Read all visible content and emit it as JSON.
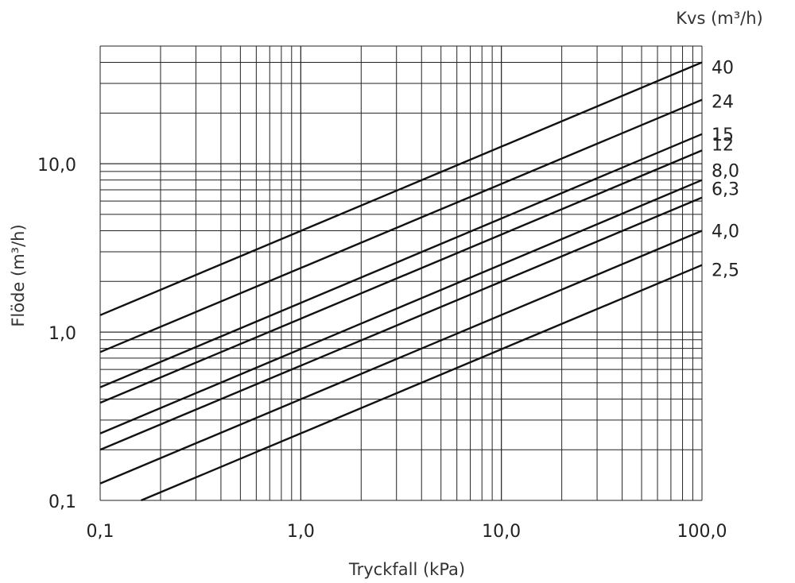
{
  "chart_data": {
    "type": "line",
    "xscale": "log",
    "yscale": "log",
    "xlim": [
      0.1,
      100
    ],
    "ylim": [
      0.1,
      50
    ],
    "grid": true,
    "xlabel": "Tryckfall (kPa)",
    "ylabel": "Flöde  (m³/h)",
    "legend_title": "Kvs (m³/h)",
    "x_ticks": [
      {
        "value": 0.1,
        "label": "0,1"
      },
      {
        "value": 1,
        "label": "1,0"
      },
      {
        "value": 10,
        "label": "10,0"
      },
      {
        "value": 100,
        "label": "100,0"
      }
    ],
    "y_ticks": [
      {
        "value": 0.1,
        "label": "0,1"
      },
      {
        "value": 1,
        "label": "1,0"
      },
      {
        "value": 10,
        "label": "10,0"
      }
    ],
    "formula": "flow = Kvs * sqrt(pressure_drop / 100)",
    "series": [
      {
        "name": "40",
        "kvs": 40,
        "x": [
          0.1,
          100
        ],
        "y": [
          1.26,
          40
        ]
      },
      {
        "name": "24",
        "kvs": 24,
        "x": [
          0.1,
          100
        ],
        "y": [
          0.76,
          24
        ]
      },
      {
        "name": "15",
        "kvs": 15,
        "x": [
          0.1,
          100
        ],
        "y": [
          0.47,
          15
        ]
      },
      {
        "name": "12",
        "kvs": 12,
        "x": [
          0.1,
          100
        ],
        "y": [
          0.38,
          12
        ]
      },
      {
        "name": "8,0",
        "kvs": 8.0,
        "x": [
          0.1,
          100
        ],
        "y": [
          0.25,
          8.0
        ]
      },
      {
        "name": "6,3",
        "kvs": 6.3,
        "x": [
          0.1,
          100
        ],
        "y": [
          0.2,
          6.3
        ]
      },
      {
        "name": "4,0",
        "kvs": 4.0,
        "x": [
          0.1,
          100
        ],
        "y": [
          0.126,
          4.0
        ]
      },
      {
        "name": "2,5",
        "kvs": 2.5,
        "x": [
          0.16,
          100
        ],
        "y": [
          0.1,
          2.5
        ]
      }
    ]
  }
}
